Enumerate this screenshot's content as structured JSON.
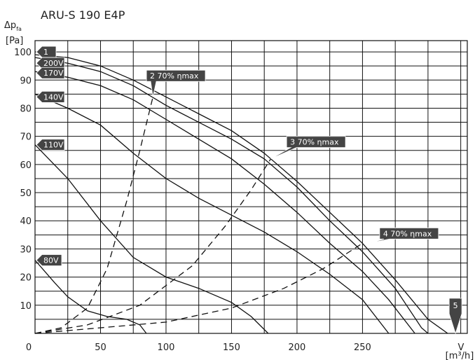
{
  "chart_data": {
    "type": "line",
    "title": "ARU-S 190 E4P",
    "ylabel_main": "Δp",
    "ylabel_sub": "fa",
    "yunit": "[Pa]",
    "xlabel": "V",
    "xunit": "[m³/h]",
    "xlim": [
      0,
      330
    ],
    "ylim": [
      0,
      104
    ],
    "xticks": [
      0,
      50,
      100,
      150,
      200,
      250
    ],
    "yticks": [
      10,
      20,
      30,
      40,
      50,
      60,
      70,
      80,
      90,
      100
    ],
    "x_grid_step": 25,
    "y_grid_step": 5,
    "grid": true,
    "colors": {
      "line": "#111111",
      "grid": "#111111",
      "flag": "#444444",
      "flag_text": "#ffffff"
    },
    "series": [
      {
        "name": "1",
        "style": "solid",
        "points": [
          [
            0,
            99
          ],
          [
            25,
            98
          ],
          [
            50,
            95
          ],
          [
            75,
            90
          ],
          [
            100,
            84
          ],
          [
            125,
            78
          ],
          [
            150,
            72
          ],
          [
            175,
            64
          ],
          [
            200,
            54
          ],
          [
            225,
            43
          ],
          [
            250,
            32
          ],
          [
            275,
            19
          ],
          [
            300,
            5
          ],
          [
            315,
            0
          ]
        ]
      },
      {
        "name": "200V",
        "style": "solid",
        "points": [
          [
            0,
            98
          ],
          [
            25,
            96
          ],
          [
            50,
            93
          ],
          [
            75,
            88
          ],
          [
            100,
            81
          ],
          [
            125,
            75
          ],
          [
            150,
            69
          ],
          [
            175,
            62
          ],
          [
            200,
            52
          ],
          [
            225,
            40
          ],
          [
            250,
            29
          ],
          [
            275,
            16
          ],
          [
            295,
            2
          ],
          [
            300,
            0
          ]
        ]
      },
      {
        "name": "170V",
        "style": "solid",
        "points": [
          [
            0,
            93
          ],
          [
            25,
            91
          ],
          [
            50,
            88
          ],
          [
            75,
            83
          ],
          [
            100,
            76
          ],
          [
            125,
            69
          ],
          [
            150,
            62
          ],
          [
            175,
            53
          ],
          [
            200,
            43
          ],
          [
            225,
            32
          ],
          [
            250,
            22
          ],
          [
            270,
            12
          ],
          [
            290,
            0
          ]
        ]
      },
      {
        "name": "140V",
        "style": "solid",
        "points": [
          [
            0,
            85
          ],
          [
            25,
            80
          ],
          [
            50,
            74
          ],
          [
            75,
            64
          ],
          [
            100,
            55
          ],
          [
            125,
            48
          ],
          [
            150,
            42
          ],
          [
            175,
            36
          ],
          [
            200,
            29
          ],
          [
            225,
            21
          ],
          [
            250,
            12
          ],
          [
            270,
            0
          ]
        ]
      },
      {
        "name": "110V",
        "style": "solid",
        "points": [
          [
            0,
            67
          ],
          [
            25,
            55
          ],
          [
            50,
            40
          ],
          [
            75,
            27
          ],
          [
            100,
            20
          ],
          [
            125,
            16
          ],
          [
            150,
            11
          ],
          [
            165,
            6
          ],
          [
            178,
            0
          ]
        ]
      },
      {
        "name": "80V",
        "style": "solid",
        "points": [
          [
            0,
            26
          ],
          [
            15,
            18
          ],
          [
            25,
            13
          ],
          [
            40,
            8
          ],
          [
            55,
            6
          ],
          [
            70,
            5
          ],
          [
            80,
            3
          ],
          [
            85,
            0
          ]
        ]
      },
      {
        "name": "2 70% ηmax",
        "style": "dashed",
        "points": [
          [
            0,
            0
          ],
          [
            20,
            2
          ],
          [
            40,
            9
          ],
          [
            55,
            23
          ],
          [
            70,
            47
          ],
          [
            80,
            65
          ],
          [
            90,
            84
          ]
        ]
      },
      {
        "name": "3 70% ηmax",
        "style": "dashed",
        "points": [
          [
            0,
            0
          ],
          [
            40,
            3
          ],
          [
            80,
            10
          ],
          [
            120,
            24
          ],
          [
            145,
            38
          ],
          [
            165,
            51
          ],
          [
            180,
            62
          ]
        ]
      },
      {
        "name": "4 70% ηmax",
        "style": "dashed",
        "points": [
          [
            0,
            0
          ],
          [
            50,
            2
          ],
          [
            100,
            4
          ],
          [
            150,
            9
          ],
          [
            190,
            16
          ],
          [
            220,
            23
          ],
          [
            250,
            32
          ]
        ]
      }
    ],
    "flags_left": [
      {
        "label": "1",
        "y": 100,
        "width": 28
      },
      {
        "label": "200V",
        "y": 96,
        "width": 40
      },
      {
        "label": "170V",
        "y": 92.5,
        "width": 40
      },
      {
        "label": "140V",
        "y": 84,
        "width": 40
      },
      {
        "label": "110V",
        "y": 67,
        "width": 40
      },
      {
        "label": "80V",
        "y": 26,
        "width": 36
      }
    ],
    "flags_callout": [
      {
        "label": "2 70% ηmax",
        "x_end": 130,
        "y": 91.5,
        "width": 84,
        "tip": [
          90,
          84
        ]
      },
      {
        "label": "3 70% ηmax",
        "x_end": 237,
        "y": 68,
        "width": 84,
        "tip": [
          180,
          62
        ]
      },
      {
        "label": "4 70% ηmax",
        "x_end": 308,
        "y": 35.5,
        "width": 84,
        "tip": [
          255,
          32
        ]
      }
    ],
    "flag_bottom": {
      "label": "5",
      "x": 321,
      "y": 5
    }
  }
}
